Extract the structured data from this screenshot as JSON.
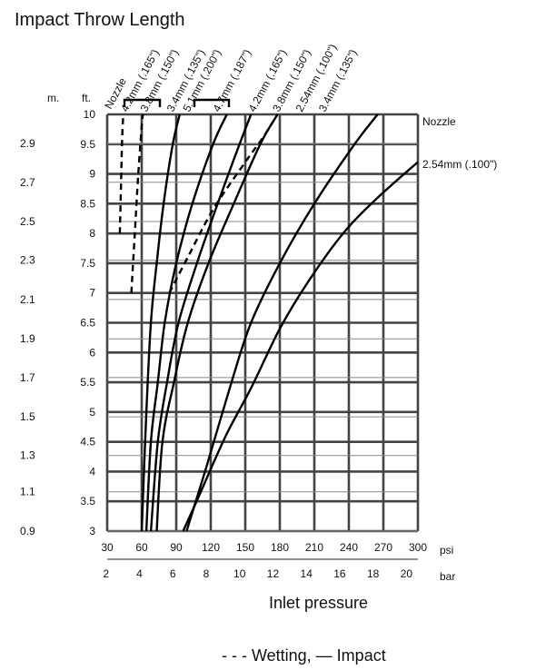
{
  "chart_data": {
    "type": "line",
    "title": "Impact Throw Length",
    "xlabel": "Inlet pressure",
    "x_unit_psi": "psi",
    "x_unit_bar": "bar",
    "y_unit_m": "m.",
    "y_unit_ft": "ft.",
    "nozzle_header": "Nozzle",
    "right_nozzle_label": "Nozzle",
    "right_series_label": "2.54mm  (.100\")",
    "legend_text": "- - -  Wetting,  —  Impact",
    "xlim": [
      30,
      300
    ],
    "ylim": [
      3,
      10
    ],
    "grid": true,
    "psi_ticks": [
      "30",
      "60",
      "90",
      "120",
      "150",
      "180",
      "210",
      "240",
      "270",
      "300"
    ],
    "bar_ticks": [
      "2",
      "4",
      "6",
      "8",
      "10",
      "12",
      "14",
      "16",
      "18",
      "20"
    ],
    "ft_ticks": [
      "3",
      "3.5",
      "4",
      "4.5",
      "5",
      "5.5",
      "6",
      "6.5",
      "7",
      "7.5",
      "8",
      "8.5",
      "9",
      "9.5",
      "10"
    ],
    "m_ticks": [
      {
        "label": "0.9",
        "ft": 3.0
      },
      {
        "label": "1.1",
        "ft": 3.66
      },
      {
        "label": "1.3",
        "ft": 4.27
      },
      {
        "label": "1.5",
        "ft": 4.92
      },
      {
        "label": "1.7",
        "ft": 5.58
      },
      {
        "label": "1.9",
        "ft": 6.23
      },
      {
        "label": "2.1",
        "ft": 6.89
      },
      {
        "label": "2.3",
        "ft": 7.55
      },
      {
        "label": "2.5",
        "ft": 8.2
      },
      {
        "label": "2.7",
        "ft": 8.86
      },
      {
        "label": "2.9",
        "ft": 9.51
      }
    ],
    "series": [
      {
        "name": "4.2mm (.165\")",
        "style": "dashed",
        "group": "Wetting",
        "points": [
          [
            41,
            8.0
          ],
          [
            42,
            8.8
          ],
          [
            43,
            9.6
          ],
          [
            44,
            10.0
          ]
        ]
      },
      {
        "name": "3.8mm (.150\")",
        "style": "dashed",
        "group": "Wetting",
        "points": [
          [
            51,
            7.0
          ],
          [
            54,
            8.0
          ],
          [
            57,
            9.0
          ],
          [
            60,
            9.8
          ],
          [
            61,
            10.0
          ]
        ]
      },
      {
        "name": "3.4mm (.135\")",
        "style": "dashed",
        "group": "Wetting",
        "points": [
          [
            84,
            7.0
          ],
          [
            100,
            7.6
          ],
          [
            122,
            8.4
          ],
          [
            150,
            9.2
          ],
          [
            165,
            9.6
          ],
          [
            178,
            10.0
          ]
        ]
      },
      {
        "name": "5.1mm (.200\")",
        "style": "solid",
        "group": "Impact",
        "points": [
          [
            60,
            3.0
          ],
          [
            64,
            5.0
          ],
          [
            68,
            6.5
          ],
          [
            73,
            7.5
          ],
          [
            79,
            8.5
          ],
          [
            87,
            9.5
          ],
          [
            93,
            10.0
          ]
        ]
      },
      {
        "name": "4.7mm (.187\")",
        "style": "solid",
        "group": "Impact",
        "points": [
          [
            64,
            3.0
          ],
          [
            68,
            4.5
          ],
          [
            74,
            5.5
          ],
          [
            80,
            6.5
          ],
          [
            90,
            7.5
          ],
          [
            104,
            8.5
          ],
          [
            122,
            9.5
          ],
          [
            134,
            10.0
          ]
        ]
      },
      {
        "name": "4.2mm (.165\")",
        "style": "solid",
        "group": "Impact",
        "points": [
          [
            68,
            3.0
          ],
          [
            74,
            4.5
          ],
          [
            82,
            5.5
          ],
          [
            92,
            6.5
          ],
          [
            108,
            7.5
          ],
          [
            126,
            8.5
          ],
          [
            145,
            9.5
          ],
          [
            155,
            10.0
          ]
        ]
      },
      {
        "name": "3.8mm (.150\")",
        "style": "solid",
        "group": "Impact",
        "points": [
          [
            73,
            3.0
          ],
          [
            78,
            4.5
          ],
          [
            88,
            5.5
          ],
          [
            100,
            6.5
          ],
          [
            118,
            7.5
          ],
          [
            140,
            8.5
          ],
          [
            163,
            9.5
          ],
          [
            178,
            10.0
          ]
        ]
      },
      {
        "name": "3.4mm (.135\")",
        "style": "solid",
        "group": "Impact",
        "points": [
          [
            99,
            3.0
          ],
          [
            115,
            4.0
          ],
          [
            138,
            5.5
          ],
          [
            155,
            6.5
          ],
          [
            180,
            7.5
          ],
          [
            210,
            8.5
          ],
          [
            245,
            9.5
          ],
          [
            265,
            10.0
          ]
        ]
      },
      {
        "name": "2.54mm (.100\")",
        "style": "solid",
        "group": "Impact",
        "points": [
          [
            96,
            3.0
          ],
          [
            110,
            3.6
          ],
          [
            133,
            4.6
          ],
          [
            155,
            5.4
          ],
          [
            180,
            6.4
          ],
          [
            205,
            7.2
          ],
          [
            235,
            8.0
          ],
          [
            265,
            8.6
          ],
          [
            300,
            9.2
          ]
        ]
      }
    ],
    "top_labels": [
      {
        "text": "4.2mm  (.165\")",
        "x": 44
      },
      {
        "text": "3.8mm  (.150\")",
        "x": 61
      },
      {
        "text": "3.4mm  (.135\")",
        "x": 84
      },
      {
        "text": "5.1mm  (.200\")",
        "x": 98
      },
      {
        "text": "4.7mm  (.187\")",
        "x": 124
      },
      {
        "text": "4.2mm  (.165\")",
        "x": 155
      },
      {
        "text": "3.8mm  (.150\")",
        "x": 176
      },
      {
        "text": "2.54mm  (.100\")",
        "x": 196
      },
      {
        "text": "3.4mm  (.135\")",
        "x": 216
      }
    ]
  }
}
